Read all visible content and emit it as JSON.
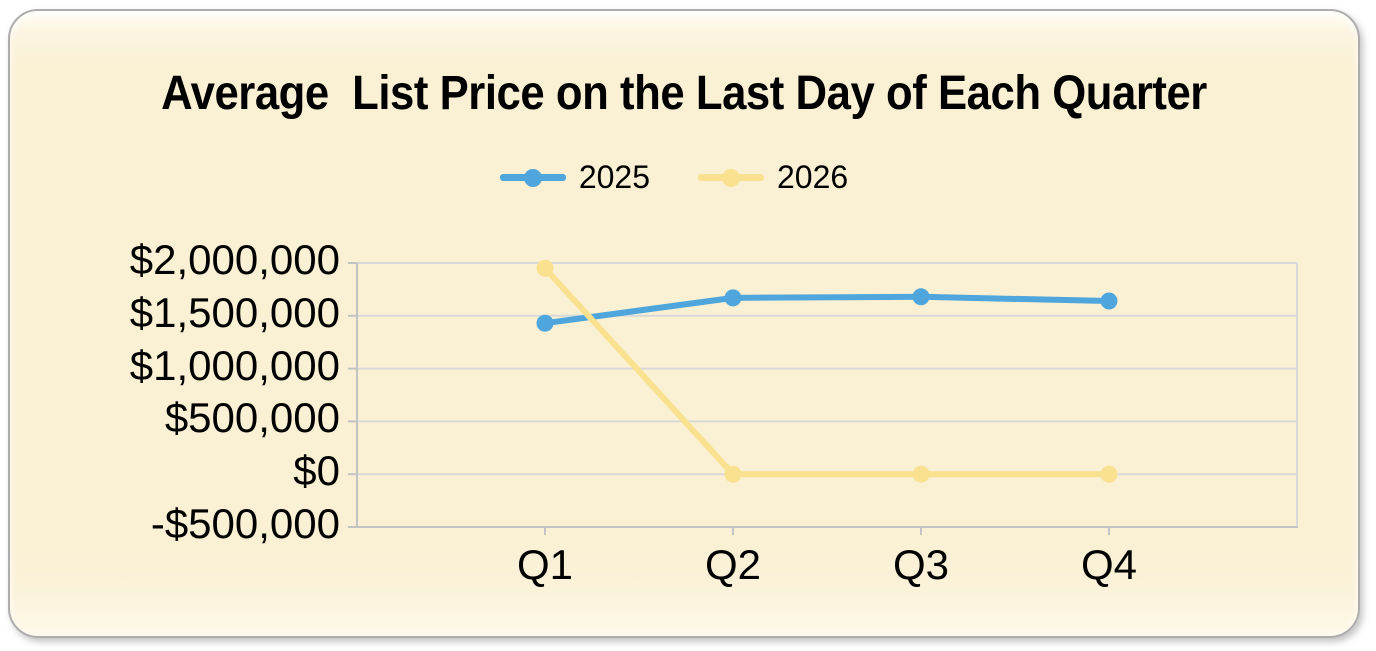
{
  "colors": {
    "page_bg": "#FFFFFF",
    "card_bg": "#FAF0D4",
    "card_border": "#ADADAD",
    "grid": "#D9D9D9",
    "axis": "#C3C3C3",
    "text": "#000000",
    "series_2025": "#4EA6DC",
    "series_2026": "#F9E18F"
  },
  "chart_data": {
    "type": "line",
    "title": "Average  List Price on the Last Day of Each Quarter",
    "xlabel": "",
    "ylabel": "",
    "categories": [
      "Q1",
      "Q2",
      "Q3",
      "Q4"
    ],
    "series": [
      {
        "name": "2025",
        "color": "#4EA6DC",
        "values": [
          1430000,
          1670000,
          1680000,
          1640000
        ]
      },
      {
        "name": "2026",
        "color": "#F9E18F",
        "values": [
          1950000,
          0,
          0,
          0
        ]
      }
    ],
    "ylim": [
      -500000,
      2000000
    ],
    "ytick_step": 500000,
    "yticks": [
      {
        "value": 2000000,
        "label": "$2,000,000"
      },
      {
        "value": 1500000,
        "label": "$1,500,000"
      },
      {
        "value": 1000000,
        "label": "$1,000,000"
      },
      {
        "value": 500000,
        "label": "$500,000"
      },
      {
        "value": 0,
        "label": "$0"
      },
      {
        "value": -500000,
        "label": "-$500,000"
      }
    ],
    "legend_position": "top-center",
    "grid": true,
    "marker": "circle"
  }
}
